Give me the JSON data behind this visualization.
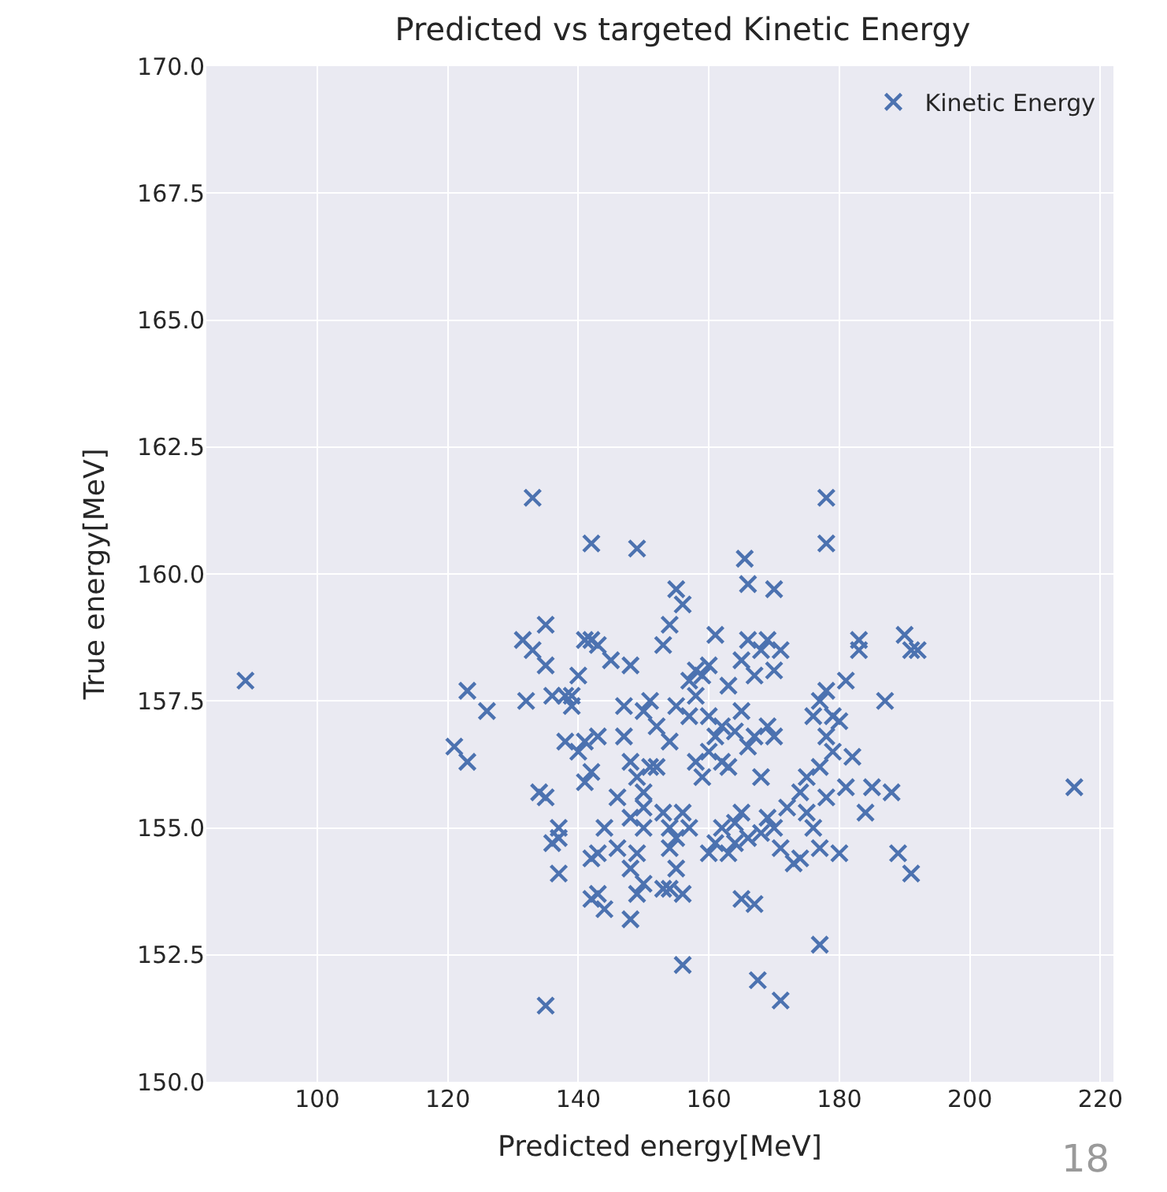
{
  "chart_data": {
    "type": "scatter",
    "title": "Predicted vs targeted Kinetic Energy",
    "xlabel": "Predicted energy[MeV]",
    "ylabel": "True energy[MeV]",
    "xlim": [
      83,
      222
    ],
    "ylim": [
      150,
      170
    ],
    "xticks": [
      100,
      120,
      140,
      160,
      180,
      200,
      220
    ],
    "yticks": [
      {
        "value": 150,
        "label": "150.0"
      },
      {
        "value": 152.5,
        "label": "152.5"
      },
      {
        "value": 155,
        "label": "155.0"
      },
      {
        "value": 157.5,
        "label": "157.5"
      },
      {
        "value": 160,
        "label": "160.0"
      },
      {
        "value": 162.5,
        "label": "162.5"
      },
      {
        "value": 165,
        "label": "165.0"
      },
      {
        "value": 167.5,
        "label": "167.5"
      },
      {
        "value": 170,
        "label": "170.0"
      }
    ],
    "grid": true,
    "legend": "top right",
    "marker": "cross",
    "annotations": [
      "18"
    ],
    "series": [
      {
        "name": "Kinetic Energy",
        "color": "#4c72b0",
        "x": [
          89,
          216,
          133,
          178,
          178,
          142,
          149,
          165.5,
          135,
          156,
          171,
          167.5,
          177,
          121,
          123,
          123,
          126,
          131.5,
          132,
          133,
          135,
          135,
          134,
          135,
          136,
          137,
          137,
          136,
          138,
          139,
          138,
          137,
          140,
          141,
          142,
          143,
          141,
          143,
          140,
          139,
          142,
          141,
          143,
          142,
          144,
          143,
          146,
          142,
          144,
          146,
          145,
          147,
          148,
          147,
          148,
          149,
          150,
          148,
          150,
          149,
          148,
          149,
          150,
          148,
          150,
          151,
          150,
          151,
          153,
          154,
          155,
          156,
          155,
          154,
          153,
          154,
          155,
          156,
          157,
          155,
          153,
          154,
          156,
          154,
          158,
          159,
          157,
          158,
          159,
          160,
          161,
          162,
          160,
          161,
          163,
          163,
          162,
          161,
          160,
          163,
          164,
          164,
          165,
          166,
          165,
          167,
          164,
          165,
          166,
          167,
          165,
          166,
          167,
          168,
          169,
          170,
          171,
          169,
          170,
          168,
          169,
          168,
          170,
          171,
          172,
          173,
          174,
          175,
          174,
          176,
          177,
          178,
          179,
          178,
          177,
          175,
          176,
          178,
          177,
          180,
          179,
          180,
          181,
          182,
          181,
          183,
          183,
          184,
          185,
          187,
          188,
          189,
          190,
          191,
          191,
          192,
          170,
          166,
          157,
          158,
          152,
          152,
          160,
          162
        ],
        "values": [
          157.9,
          155.8,
          161.5,
          161.5,
          160.6,
          160.6,
          160.5,
          160.3,
          151.5,
          152.3,
          151.6,
          152.0,
          152.7,
          156.6,
          157.7,
          156.3,
          157.3,
          158.7,
          157.5,
          158.5,
          159.0,
          158.2,
          155.7,
          155.6,
          154.7,
          154.8,
          155.0,
          157.6,
          157.6,
          157.4,
          156.7,
          154.1,
          158.0,
          158.7,
          158.7,
          158.6,
          156.7,
          156.8,
          156.5,
          157.6,
          156.1,
          155.9,
          154.5,
          153.6,
          153.4,
          153.7,
          154.6,
          154.4,
          155.0,
          155.6,
          158.3,
          157.4,
          158.2,
          156.8,
          156.3,
          156.0,
          155.7,
          155.2,
          155.0,
          154.5,
          154.2,
          153.7,
          153.9,
          153.2,
          155.4,
          156.2,
          157.3,
          157.5,
          158.6,
          159.0,
          159.7,
          159.4,
          157.4,
          156.7,
          155.3,
          155.0,
          154.8,
          155.3,
          155.0,
          154.2,
          153.8,
          153.8,
          153.7,
          154.6,
          156.3,
          156.0,
          157.2,
          157.6,
          158.0,
          156.5,
          156.8,
          157.0,
          158.2,
          158.8,
          157.8,
          156.2,
          155.0,
          154.7,
          154.5,
          154.5,
          154.7,
          155.1,
          155.3,
          154.8,
          153.6,
          153.5,
          156.9,
          157.3,
          156.6,
          156.8,
          158.3,
          158.7,
          158.0,
          158.5,
          158.7,
          158.1,
          158.5,
          157.0,
          156.8,
          156.0,
          155.2,
          154.9,
          155.0,
          154.6,
          155.4,
          154.3,
          155.7,
          156.0,
          154.4,
          157.2,
          157.5,
          157.7,
          157.2,
          156.8,
          156.2,
          155.3,
          155.0,
          155.6,
          154.6,
          154.5,
          156.5,
          157.1,
          157.9,
          156.4,
          155.8,
          158.5,
          158.7,
          155.3,
          155.8,
          157.5,
          155.7,
          154.5,
          158.8,
          154.1,
          158.5,
          158.5,
          159.7,
          159.8,
          157.9,
          158.1,
          157.0,
          156.2,
          157.2,
          156.3
        ]
      }
    ]
  }
}
